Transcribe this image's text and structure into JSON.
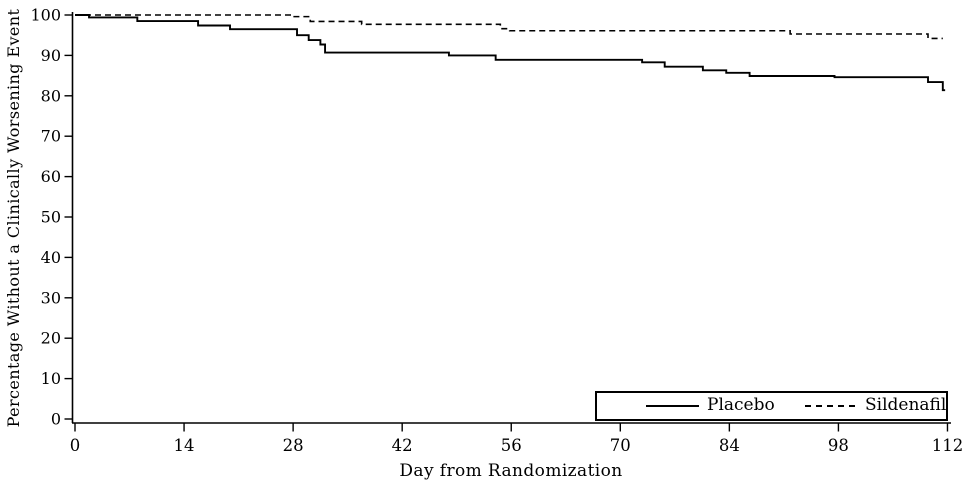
{
  "chart_data": {
    "type": "line",
    "subtype": "kaplan-meier-step",
    "title": "",
    "xlabel": "Day from Randomization",
    "ylabel": "Percentage Without a Clinically Worsening Event",
    "xlim": [
      0,
      112
    ],
    "ylim": [
      0,
      100
    ],
    "xticks": [
      0,
      14,
      28,
      42,
      56,
      70,
      84,
      98,
      112
    ],
    "yticks": [
      0,
      10,
      20,
      30,
      40,
      50,
      60,
      70,
      80,
      90,
      100
    ],
    "grid": false,
    "legend_position": "inside-bottom-right",
    "series": [
      {
        "name": "Placebo",
        "line_style": "solid",
        "color": "#000000",
        "end_day": 111.7,
        "steps": [
          [
            0,
            100
          ],
          [
            1.8,
            99.4
          ],
          [
            8,
            98.5
          ],
          [
            15.8,
            97.4
          ],
          [
            19.9,
            96.5
          ],
          [
            28.5,
            95.0
          ],
          [
            30,
            93.8
          ],
          [
            31.5,
            92.7
          ],
          [
            32.1,
            90.7
          ],
          [
            48,
            90.0
          ],
          [
            54,
            88.9
          ],
          [
            72.8,
            88.3
          ],
          [
            75.7,
            87.2
          ],
          [
            80.6,
            86.3
          ],
          [
            83.6,
            85.7
          ],
          [
            86.6,
            84.9
          ],
          [
            97.5,
            84.6
          ],
          [
            109.5,
            83.4
          ],
          [
            111.4,
            81.4
          ]
        ]
      },
      {
        "name": "Sildenafil",
        "line_style": "dashed",
        "color": "#000000",
        "end_day": 111.4,
        "steps": [
          [
            0,
            100
          ],
          [
            28,
            99.6
          ],
          [
            30.2,
            98.4
          ],
          [
            36.8,
            97.7
          ],
          [
            54.6,
            96.6
          ],
          [
            55.8,
            96.1
          ],
          [
            91.8,
            95.3
          ],
          [
            109.5,
            94.2
          ]
        ]
      }
    ]
  },
  "legend": {
    "items": [
      {
        "label": "Placebo",
        "style": "solid"
      },
      {
        "label": "Sildenafil",
        "style": "dashed"
      }
    ]
  },
  "colors": {
    "line": "#000000",
    "background": "#ffffff",
    "text": "#000000"
  }
}
